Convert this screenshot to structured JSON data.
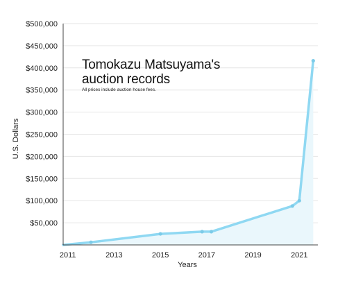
{
  "chart_data": {
    "type": "area",
    "title": "Tomokazu Matsuyama's auction records",
    "subtitle": "All prices include auction house fees.",
    "xlabel": "Years",
    "ylabel": "U.S. Dollars",
    "xlim": [
      2010.8,
      2021.8
    ],
    "ylim": [
      0,
      500000
    ],
    "x_ticks": [
      2011,
      2013,
      2015,
      2017,
      2019,
      2021
    ],
    "y_ticks": [
      {
        "value": 50000,
        "label": "$50,000"
      },
      {
        "value": 100000,
        "label": "$100,000"
      },
      {
        "value": 150000,
        "label": "$150,000"
      },
      {
        "value": 200000,
        "label": "$200,000"
      },
      {
        "value": 250000,
        "label": "$250,000"
      },
      {
        "value": 300000,
        "label": "$300,000"
      },
      {
        "value": 350000,
        "label": "$350,000"
      },
      {
        "value": 400000,
        "label": "$400,000"
      },
      {
        "value": 450000,
        "label": "$450,000"
      },
      {
        "value": 500000,
        "label": "$500,000"
      }
    ],
    "grid": true,
    "series": [
      {
        "x": [
          2010.8,
          2012.0,
          2015.0,
          2016.8,
          2017.2,
          2020.7,
          2021.0,
          2021.6
        ],
        "y": [
          0,
          6000,
          25000,
          30000,
          30000,
          88000,
          100000,
          416000
        ],
        "markers": [
          false,
          true,
          true,
          true,
          true,
          true,
          true,
          true
        ]
      }
    ]
  },
  "colors": {
    "line": "#8fd8f2",
    "marker": "#7ccbe8",
    "fill": "#eaf7fc",
    "grid": "#e6e6e6",
    "axis": "#444444"
  }
}
